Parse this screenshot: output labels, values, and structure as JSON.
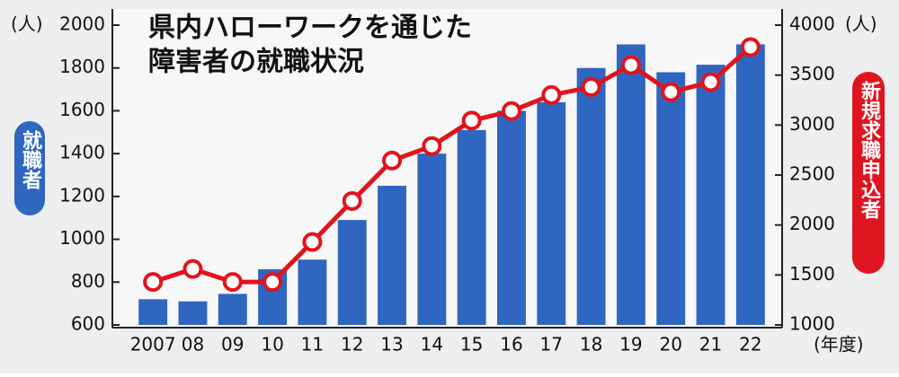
{
  "chart_data": {
    "type": "bar_line",
    "title_lines": [
      "県内ハローワークを通じた",
      "障害者の就職状況"
    ],
    "y_unit": "(人)",
    "y2_unit": "(人)",
    "x_label": "(年度)",
    "y_label": "就職者",
    "y2_label": "新規求職申込者",
    "categories": [
      "2007",
      "08",
      "09",
      "10",
      "11",
      "12",
      "13",
      "14",
      "15",
      "16",
      "17",
      "18",
      "19",
      "20",
      "21",
      "22"
    ],
    "series": [
      {
        "name": "就職者",
        "type": "bar",
        "color": "#2f66c0",
        "values": [
          720,
          710,
          745,
          860,
          905,
          1090,
          1250,
          1400,
          1510,
          1600,
          1640,
          1800,
          1910,
          1780,
          1815,
          1910
        ]
      },
      {
        "name": "新規求職申込者",
        "type": "line",
        "axis": "y2",
        "color": "#e0141e",
        "values": [
          1430,
          1560,
          1430,
          1430,
          1830,
          2240,
          2645,
          2790,
          3045,
          3140,
          3300,
          3380,
          3600,
          3330,
          3430,
          3780
        ]
      }
    ],
    "ylim": [
      600,
      2000
    ],
    "yticks": [
      600,
      800,
      1000,
      1200,
      1400,
      1600,
      1800,
      2000
    ],
    "y2lim": [
      1000,
      4000
    ],
    "y2ticks": [
      1000,
      1500,
      2000,
      2500,
      3000,
      3500,
      4000
    ],
    "grid": false
  }
}
